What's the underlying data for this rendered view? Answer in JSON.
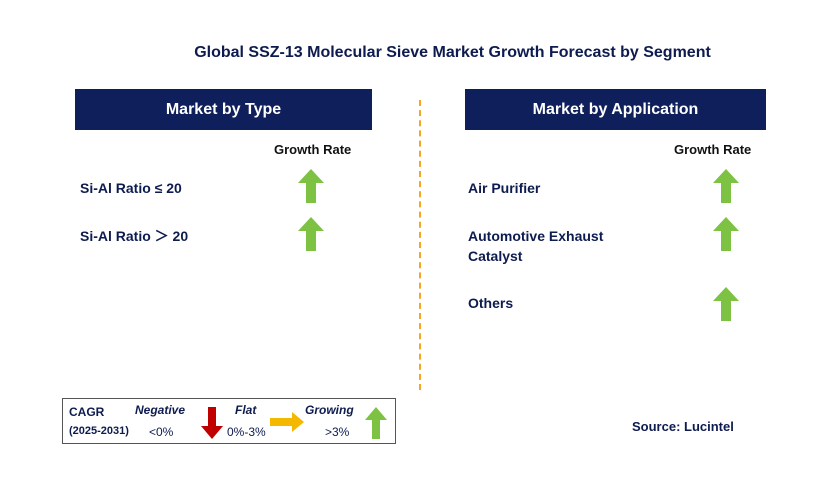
{
  "title": "Global SSZ-13 Molecular Sieve Market Growth Forecast by Segment",
  "left_panel": {
    "header": "Market by Type",
    "growth_header": "Growth Rate",
    "rows": [
      {
        "label": "Si-Al Ratio ≤ 20",
        "trend": "growing"
      },
      {
        "label": "Si-Al Ratio ＞ 20",
        "trend": "growing"
      }
    ]
  },
  "right_panel": {
    "header": "Market by Application",
    "growth_header": "Growth Rate",
    "rows": [
      {
        "label_line1": "Air Purifier",
        "label_line2": "",
        "trend": "growing"
      },
      {
        "label_line1": "Automotive Exhaust",
        "label_line2": "Catalyst",
        "trend": "growing"
      },
      {
        "label_line1": "Others",
        "label_line2": "",
        "trend": "growing"
      }
    ]
  },
  "legend": {
    "cagr_label": "CAGR",
    "period": "(2025-2031)",
    "negative_label": "Negative",
    "negative_value": "<0%",
    "flat_label": "Flat",
    "flat_value": "0%-3%",
    "growing_label": "Growing",
    "growing_value": ">3%"
  },
  "source": "Source: Lucintel",
  "colors": {
    "header_bg": "#0f1f5c",
    "text_navy": "#0d1b4f",
    "up_arrow": "#7dc243",
    "down_arrow": "#c00000",
    "flat_arrow": "#f5b800",
    "divider": "#f5a623"
  }
}
